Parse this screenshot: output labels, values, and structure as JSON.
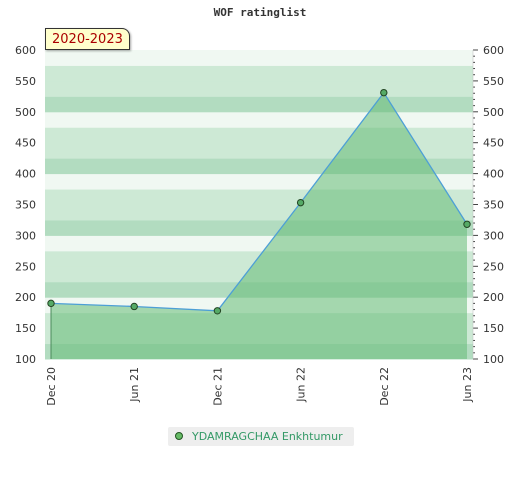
{
  "chart_data": {
    "type": "area",
    "title": "WOF ratinglist",
    "period_label": "2020-2023",
    "x_ticks": [
      "Dec 20",
      "Jun 21",
      "Dec 21",
      "Jun 22",
      "Dec 22",
      "Jun 23"
    ],
    "y_ticks": [
      100,
      150,
      200,
      250,
      300,
      350,
      400,
      450,
      500,
      550,
      600
    ],
    "ylim": [
      100,
      600
    ],
    "grid": "horizontal bands",
    "legend_position": "bottom-center",
    "series": [
      {
        "name": "YDAMRAGCHAA Enkhtumur",
        "x": [
          "Dec 20",
          "Jun 21",
          "Dec 21",
          "Jun 22",
          "Dec 22",
          "Jun 23"
        ],
        "values": [
          190,
          185,
          178,
          353,
          531,
          318
        ]
      }
    ],
    "colors": {
      "line": "#4d9fd6",
      "area": "#66bb77",
      "point_fill": "#55aa66",
      "point_stroke": "#224422",
      "band_dark": "#b2dcc0",
      "band_mid": "#cde9d5",
      "band_light": "#f0f8f2"
    }
  }
}
